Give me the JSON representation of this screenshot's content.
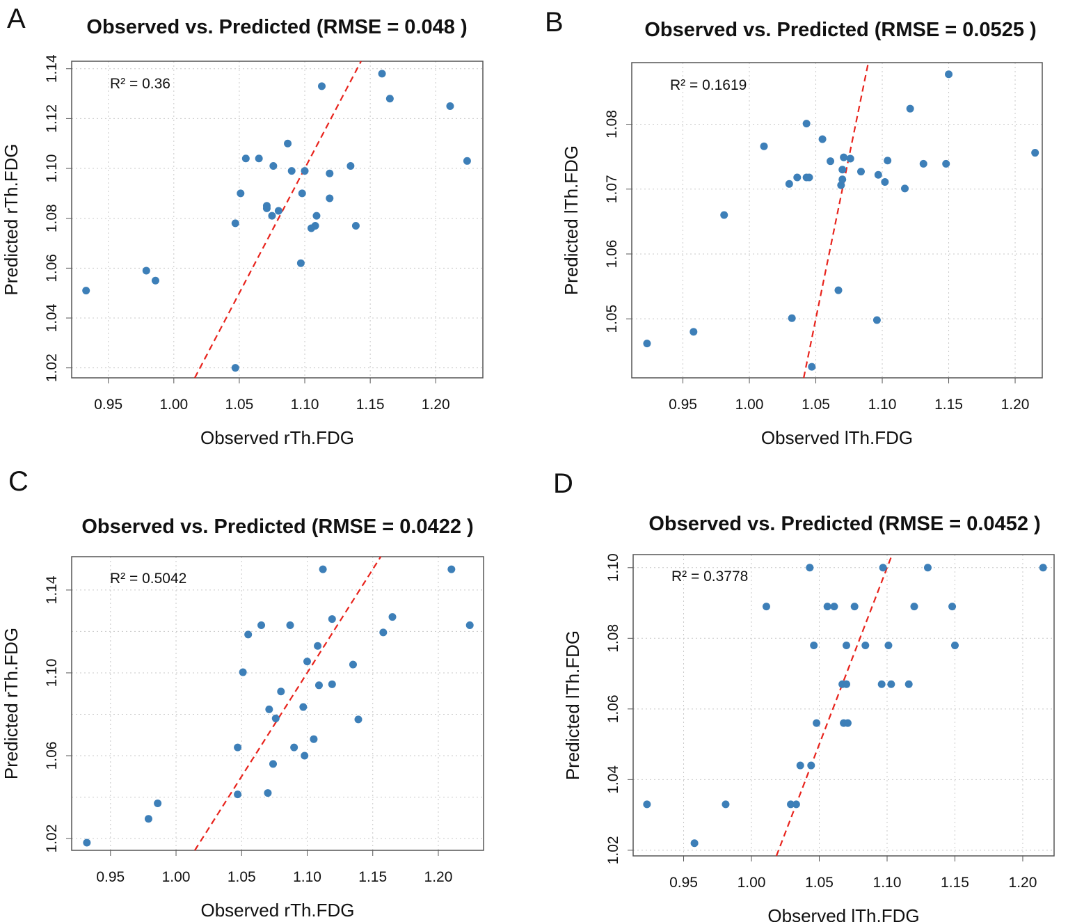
{
  "chart_data": [
    {
      "panel": "A",
      "type": "scatter",
      "title": "Observed vs. Predicted (RMSE = 0.048 )",
      "xlabel": "Observed rTh.FDG",
      "ylabel": "Predicted rTh.FDG",
      "annotation": "R² = 0.36",
      "xlim": [
        0.922,
        1.236
      ],
      "ylim": [
        1.016,
        1.143
      ],
      "xticks": [
        0.95,
        1.0,
        1.05,
        1.1,
        1.15,
        1.2
      ],
      "yticks": [
        1.02,
        1.04,
        1.06,
        1.08,
        1.1,
        1.12,
        1.14
      ],
      "ygrid": [
        1.02,
        1.04,
        1.06,
        1.08,
        1.1,
        1.12,
        1.14
      ],
      "grid": true,
      "reference_line": "y = x (red dashed)",
      "x": [
        0.933,
        0.979,
        0.986,
        1.047,
        1.047,
        1.051,
        1.055,
        1.065,
        1.071,
        1.071,
        1.075,
        1.076,
        1.08,
        1.087,
        1.09,
        1.098,
        1.097,
        1.1,
        1.105,
        1.108,
        1.109,
        1.113,
        1.119,
        1.119,
        1.135,
        1.139,
        1.159,
        1.165,
        1.211,
        1.224
      ],
      "y": [
        1.051,
        1.059,
        1.055,
        1.02,
        1.078,
        1.09,
        1.104,
        1.104,
        1.085,
        1.084,
        1.081,
        1.101,
        1.083,
        1.11,
        1.099,
        1.09,
        1.062,
        1.099,
        1.076,
        1.077,
        1.081,
        1.133,
        1.098,
        1.088,
        1.101,
        1.077,
        1.138,
        1.128,
        1.125,
        1.103
      ]
    },
    {
      "panel": "B",
      "type": "scatter",
      "title": "Observed vs. Predicted (RMSE = 0.0525 )",
      "xlabel": "Observed lTh.FDG",
      "ylabel": "Predicted lTh.FDG",
      "annotation": "R² = 0.1619",
      "xlim": [
        0.9115,
        1.2204
      ],
      "ylim": [
        1.0409,
        1.0895
      ],
      "xticks": [
        0.95,
        1.0,
        1.05,
        1.1,
        1.15,
        1.2
      ],
      "yticks": [
        1.05,
        1.06,
        1.07,
        1.08
      ],
      "ygrid": [
        1.05,
        1.06,
        1.07,
        1.08
      ],
      "grid": true,
      "reference_line": "y = x (red dashed)",
      "x": [
        0.923,
        0.958,
        0.981,
        1.011,
        1.03,
        1.032,
        1.036,
        1.043,
        1.043,
        1.045,
        1.047,
        1.055,
        1.061,
        1.067,
        1.069,
        1.07,
        1.07,
        1.071,
        1.076,
        1.084,
        1.096,
        1.097,
        1.102,
        1.104,
        1.117,
        1.121,
        1.131,
        1.148,
        1.15,
        1.215
      ],
      "y": [
        1.0462,
        1.048,
        1.066,
        1.0766,
        1.0708,
        1.0501,
        1.0718,
        1.0801,
        1.0718,
        1.0718,
        1.0426,
        1.0777,
        1.0743,
        1.0544,
        1.0706,
        1.073,
        1.0715,
        1.0749,
        1.0747,
        1.0727,
        1.0498,
        1.0722,
        1.0711,
        1.0744,
        1.0701,
        1.0824,
        1.0739,
        1.0739,
        1.0877,
        1.0756
      ]
    },
    {
      "panel": "C",
      "type": "scatter",
      "title": "Observed vs. Predicted (RMSE = 0.0422 )",
      "xlabel": "Observed rTh.FDG",
      "ylabel": "Predicted rTh.FDG",
      "annotation": "R² = 0.5042",
      "xlim": [
        0.9204,
        1.2345
      ],
      "ylim": [
        1.0143,
        1.1561
      ],
      "xticks": [
        0.95,
        1.0,
        1.05,
        1.1,
        1.15,
        1.2
      ],
      "yticks": [
        1.02,
        1.06,
        1.1,
        1.14
      ],
      "ygrid": [
        1.02,
        1.04,
        1.06,
        1.08,
        1.1,
        1.12,
        1.14
      ],
      "grid": true,
      "reference_line": "y = x (red dashed)",
      "x": [
        0.932,
        0.979,
        0.986,
        1.047,
        1.047,
        1.051,
        1.055,
        1.065,
        1.07,
        1.071,
        1.074,
        1.076,
        1.08,
        1.087,
        1.09,
        1.097,
        1.098,
        1.1,
        1.105,
        1.108,
        1.109,
        1.112,
        1.119,
        1.119,
        1.135,
        1.139,
        1.158,
        1.165,
        1.21,
        1.224
      ],
      "y": [
        1.018,
        1.0295,
        1.037,
        1.064,
        1.0413,
        1.1003,
        1.1185,
        1.123,
        1.042,
        1.0824,
        1.056,
        1.078,
        1.091,
        1.123,
        1.064,
        1.0835,
        1.06,
        1.1055,
        1.068,
        1.113,
        1.094,
        1.15,
        1.126,
        1.0945,
        1.104,
        1.0775,
        1.1195,
        1.127,
        1.15,
        1.123
      ]
    },
    {
      "panel": "D",
      "type": "scatter",
      "title": "Observed vs. Predicted (RMSE = 0.0452 )",
      "xlabel": "Observed lTh.FDG",
      "ylabel": "Predicted lTh.FDG",
      "annotation": "R² = 0.3778",
      "xlim": [
        0.9128,
        1.2231
      ],
      "ylim": [
        1.0184,
        1.1037
      ],
      "xticks": [
        0.95,
        1.0,
        1.05,
        1.1,
        1.15,
        1.2
      ],
      "yticks": [
        1.02,
        1.04,
        1.06,
        1.08,
        1.1
      ],
      "ygrid": [
        1.02,
        1.04,
        1.06,
        1.08,
        1.1
      ],
      "grid": true,
      "reference_line": "y = x (red dashed)",
      "x": [
        0.923,
        0.958,
        0.981,
        1.011,
        1.029,
        1.033,
        1.036,
        1.043,
        1.044,
        1.046,
        1.048,
        1.056,
        1.061,
        1.067,
        1.068,
        1.07,
        1.07,
        1.071,
        1.076,
        1.084,
        1.096,
        1.097,
        1.103,
        1.101,
        1.116,
        1.12,
        1.13,
        1.148,
        1.15,
        1.215
      ],
      "y": [
        1.033,
        1.022,
        1.033,
        1.089,
        1.033,
        1.033,
        1.044,
        1.1,
        1.044,
        1.078,
        1.056,
        1.089,
        1.089,
        1.067,
        1.056,
        1.078,
        1.067,
        1.056,
        1.089,
        1.078,
        1.067,
        1.1,
        1.067,
        1.078,
        1.067,
        1.089,
        1.1,
        1.089,
        1.078,
        1.1
      ]
    }
  ],
  "colors": {
    "points": "#3d7fb8",
    "reference_line": "#e8231c",
    "grid": "#c8c8c8",
    "frame": "#555555"
  }
}
